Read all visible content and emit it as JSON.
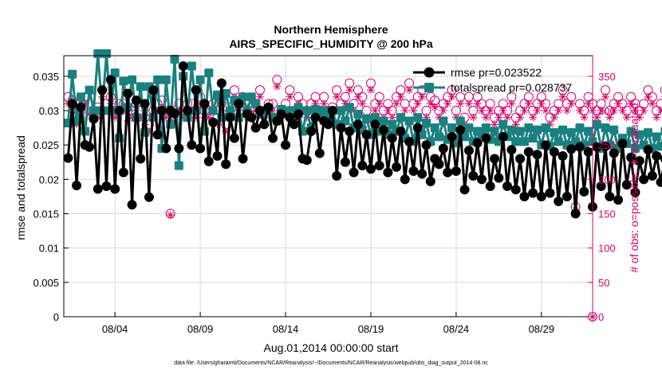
{
  "chart_data": {
    "type": "line",
    "title": "Northern Hemisphere",
    "subtitle": "AIRS_SPECIFIC_HUMIDITY @ 200 hPa",
    "xlabel": "Aug.01,2014 00:00:00 start",
    "ylabel": "rmse and totalspread",
    "ylabel_right": "# of obs: o=possible; ∗=evaluated",
    "footnote": "data file: /Users/gharamti/Documents/NCAR/Reanalysis/~/Documents/NCAR/Reanalysis/webpub/obs_diag_output_2014-08.nc",
    "x_ticks": [
      "08/04",
      "08/09",
      "08/14",
      "08/19",
      "08/24",
      "08/29"
    ],
    "x_tick_days": [
      4,
      9,
      14,
      19,
      24,
      29
    ],
    "xlim": [
      1.0,
      32.0
    ],
    "ylim": [
      0,
      0.038
    ],
    "y_ticks": [
      "0",
      "0.005",
      "0.01",
      "0.015",
      "0.02",
      "0.025",
      "0.03",
      "0.035"
    ],
    "y_tick_values": [
      0,
      0.005,
      0.01,
      0.015,
      0.02,
      0.025,
      0.03,
      0.035
    ],
    "ylim_right": [
      0,
      380
    ],
    "y_ticks_right": [
      "0",
      "50",
      "100",
      "150",
      "200",
      "250",
      "300",
      "350"
    ],
    "y_tick_values_right": [
      0,
      50,
      100,
      150,
      200,
      250,
      300,
      350
    ],
    "grid": true,
    "legend_position": "top-right",
    "colors": {
      "rmse": "#000000",
      "totalspread": "#1a8080",
      "obs": "#d6006b"
    },
    "x_start_day": 1.25,
    "x_step_days": 0.25,
    "series": [
      {
        "name": "rmse pr=0.023522",
        "values": [
          0.0231,
          0.031,
          0.0191,
          0.0305,
          0.025,
          0.0247,
          0.0288,
          0.0186,
          0.033,
          0.019,
          0.0345,
          0.0186,
          0.03,
          0.021,
          0.0325,
          0.0163,
          0.0315,
          0.023,
          0.031,
          0.0174,
          0.033,
          0.0265,
          0.03,
          0.0245,
          0.03,
          0.0296,
          0.0245,
          0.0365,
          0.03,
          0.025,
          0.033,
          0.0245,
          0.031,
          0.0226,
          0.0283,
          0.0234,
          0.034,
          0.0222,
          0.029,
          0.026,
          0.031,
          0.023,
          0.0295,
          0.029,
          0.0275,
          0.03,
          0.028,
          0.0305,
          0.026,
          0.0285,
          0.0295,
          0.025,
          0.029,
          0.028,
          0.0295,
          0.023,
          0.0228,
          0.027,
          0.029,
          0.0238,
          0.0285,
          0.028,
          0.03,
          0.0205,
          0.0275,
          0.0225,
          0.027,
          0.021,
          0.028,
          0.022,
          0.0265,
          0.0215,
          0.028,
          0.022,
          0.0272,
          0.021,
          0.026,
          0.0218,
          0.027,
          0.02,
          0.0255,
          0.0212,
          0.0275,
          0.0208,
          0.025,
          0.0197,
          0.023,
          0.0222,
          0.0245,
          0.021,
          0.0262,
          0.0212,
          0.0272,
          0.0185,
          0.0242,
          0.0205,
          0.0253,
          0.02,
          0.026,
          0.019,
          0.023,
          0.0202,
          0.0262,
          0.019,
          0.0243,
          0.0185,
          0.023,
          0.0175,
          0.024,
          0.018,
          0.0236,
          0.0175,
          0.025,
          0.018,
          0.024,
          0.0168,
          0.0234,
          0.0175,
          0.0244,
          0.015,
          0.0247,
          0.0182,
          0.024,
          0.016,
          0.0247,
          0.019,
          0.0248,
          0.0175,
          0.0238,
          0.017,
          0.0252,
          0.0192,
          0.0232,
          0.0181,
          0.0227,
          0.02,
          0.0243,
          0.0205,
          0.0234,
          0.0196,
          0.023,
          0.0205,
          0.0255,
          0.0155,
          0.0243,
          0.0185,
          0.0238
        ]
      },
      {
        "name": "totalspread pr=0.028737",
        "values": [
          0.0282,
          0.0353,
          0.0285,
          0.032,
          0.027,
          0.033,
          0.03,
          0.0383,
          0.03,
          0.0383,
          0.03,
          0.0355,
          0.026,
          0.0343,
          0.0305,
          0.0345,
          0.029,
          0.0335,
          0.0268,
          0.0335,
          0.029,
          0.0345,
          0.0245,
          0.0345,
          0.028,
          0.0375,
          0.022,
          0.035,
          0.029,
          0.0365,
          0.03,
          0.0345,
          0.027,
          0.0355,
          0.03,
          0.0323,
          0.029,
          0.0325,
          0.03,
          0.0315,
          0.029,
          0.032,
          0.03,
          0.032,
          0.031,
          0.0295,
          0.03,
          0.03,
          0.029,
          0.0285,
          0.0302,
          0.0295,
          0.03,
          0.03,
          0.0305,
          0.027,
          0.03,
          0.0275,
          0.0302,
          0.0295,
          0.03,
          0.029,
          0.03,
          0.028,
          0.03,
          0.0285,
          0.0305,
          0.0275,
          0.0295,
          0.0272,
          0.0288,
          0.0265,
          0.029,
          0.027,
          0.0285,
          0.0265,
          0.028,
          0.027,
          0.029,
          0.026,
          0.0285,
          0.0255,
          0.029,
          0.0265,
          0.0282,
          0.0255,
          0.0275,
          0.0262,
          0.0285,
          0.0258,
          0.0275,
          0.0253,
          0.0285,
          0.0262,
          0.0275,
          0.0255,
          0.027,
          0.0265,
          0.0275,
          0.0258,
          0.027,
          0.0255,
          0.028,
          0.0262,
          0.0272,
          0.0255,
          0.027,
          0.0255,
          0.0275,
          0.026,
          0.0272,
          0.025,
          0.0275,
          0.0248,
          0.0268,
          0.0255,
          0.0272,
          0.025,
          0.0268,
          0.0255,
          0.0275,
          0.025,
          0.027,
          0.0255,
          0.028,
          0.0245,
          0.0275,
          0.025,
          0.0272,
          0.0245,
          0.026,
          0.0252,
          0.027,
          0.0245,
          0.0265,
          0.025,
          0.0268,
          0.0245,
          0.0262,
          0.0248,
          0.027,
          0.024,
          0.031,
          0.0252,
          0.027
        ]
      },
      {
        "name": "possible",
        "values": [
          320,
          315,
          290,
          300,
          320,
          310,
          300,
          305,
          330,
          310,
          320,
          300,
          310,
          310,
          300,
          300,
          310,
          300,
          290,
          280,
          300,
          310,
          315,
          300,
          150,
          300,
          310,
          300,
          310,
          310,
          300,
          320,
          300,
          300,
          310,
          290,
          310,
          280,
          300,
          330,
          310,
          320,
          300,
          305,
          310,
          330,
          300,
          310,
          310,
          345,
          300,
          310,
          330,
          300,
          320,
          310,
          300,
          310,
          320,
          300,
          320,
          300,
          305,
          330,
          310,
          320,
          340,
          310,
          330,
          320,
          300,
          340,
          310,
          320,
          300,
          310,
          300,
          320,
          330,
          310,
          340,
          310,
          320,
          330,
          300,
          320,
          315,
          300,
          310,
          320,
          330,
          300,
          320,
          290,
          320,
          300,
          320,
          310,
          300,
          310,
          290,
          300,
          310,
          300,
          320,
          290,
          300,
          310,
          320,
          300,
          310,
          320,
          310,
          290,
          300,
          310,
          330,
          310,
          320,
          160,
          310,
          300,
          320,
          310,
          300,
          310,
          330,
          300,
          310,
          320,
          310,
          300,
          320,
          310,
          300,
          310,
          330,
          320,
          300,
          310,
          330,
          340,
          310
        ]
      },
      {
        "name": "evaluated",
        "values": [
          310,
          300,
          280,
          290,
          310,
          295,
          290,
          290,
          320,
          300,
          310,
          290,
          300,
          300,
          285,
          290,
          300,
          290,
          280,
          270,
          290,
          300,
          305,
          290,
          148,
          290,
          300,
          290,
          300,
          300,
          290,
          310,
          290,
          290,
          300,
          280,
          300,
          270,
          290,
          320,
          300,
          310,
          290,
          295,
          300,
          320,
          290,
          300,
          300,
          335,
          290,
          300,
          320,
          290,
          310,
          300,
          290,
          300,
          310,
          290,
          310,
          290,
          295,
          320,
          300,
          310,
          330,
          300,
          320,
          310,
          290,
          330,
          300,
          310,
          290,
          300,
          290,
          310,
          320,
          300,
          330,
          300,
          310,
          320,
          290,
          310,
          305,
          290,
          300,
          310,
          320,
          290,
          310,
          280,
          310,
          290,
          310,
          300,
          290,
          300,
          280,
          290,
          300,
          290,
          310,
          280,
          290,
          300,
          310,
          290,
          300,
          310,
          300,
          280,
          290,
          300,
          320,
          300,
          310,
          155,
          300,
          290,
          310,
          300,
          290,
          300,
          320,
          290,
          300,
          310,
          300,
          290,
          310,
          300,
          290,
          300,
          320,
          310,
          290,
          300,
          320,
          330,
          300
        ]
      }
    ]
  }
}
